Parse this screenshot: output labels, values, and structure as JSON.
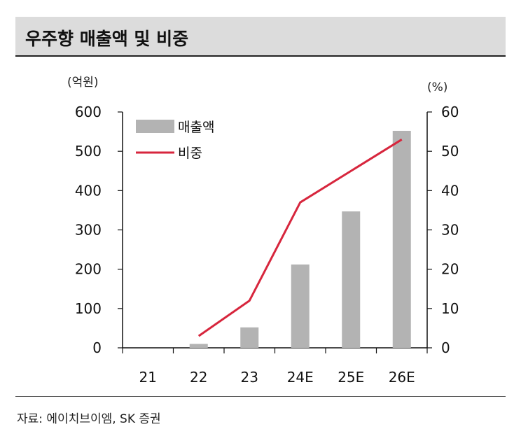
{
  "title": "우주향 매출액 및 비중",
  "source": "자료: 에이치브이엠, SK 증권",
  "chart_data": {
    "type": "bar",
    "categories": [
      "21",
      "22",
      "23",
      "24E",
      "25E",
      "26E"
    ],
    "y_left_unit": "(억원)",
    "y_right_unit": "(%)",
    "y_left_ticks": [
      "0",
      "100",
      "200",
      "300",
      "400",
      "500",
      "600"
    ],
    "y_right_ticks": [
      "0",
      "10",
      "20",
      "30",
      "40",
      "50",
      "60"
    ],
    "ylim_left": [
      0,
      600
    ],
    "ylim_right": [
      0,
      60
    ],
    "series": [
      {
        "name": "매출액",
        "type": "bar",
        "axis": "left",
        "color": "#b3b3b3",
        "values": [
          0,
          10,
          52,
          212,
          347,
          552
        ]
      },
      {
        "name": "비중",
        "type": "line",
        "axis": "right",
        "color": "#d7263d",
        "values": [
          null,
          3.0,
          12.0,
          37.0,
          45.0,
          53.0
        ]
      }
    ],
    "legend_position": "top-left",
    "grid": false
  }
}
